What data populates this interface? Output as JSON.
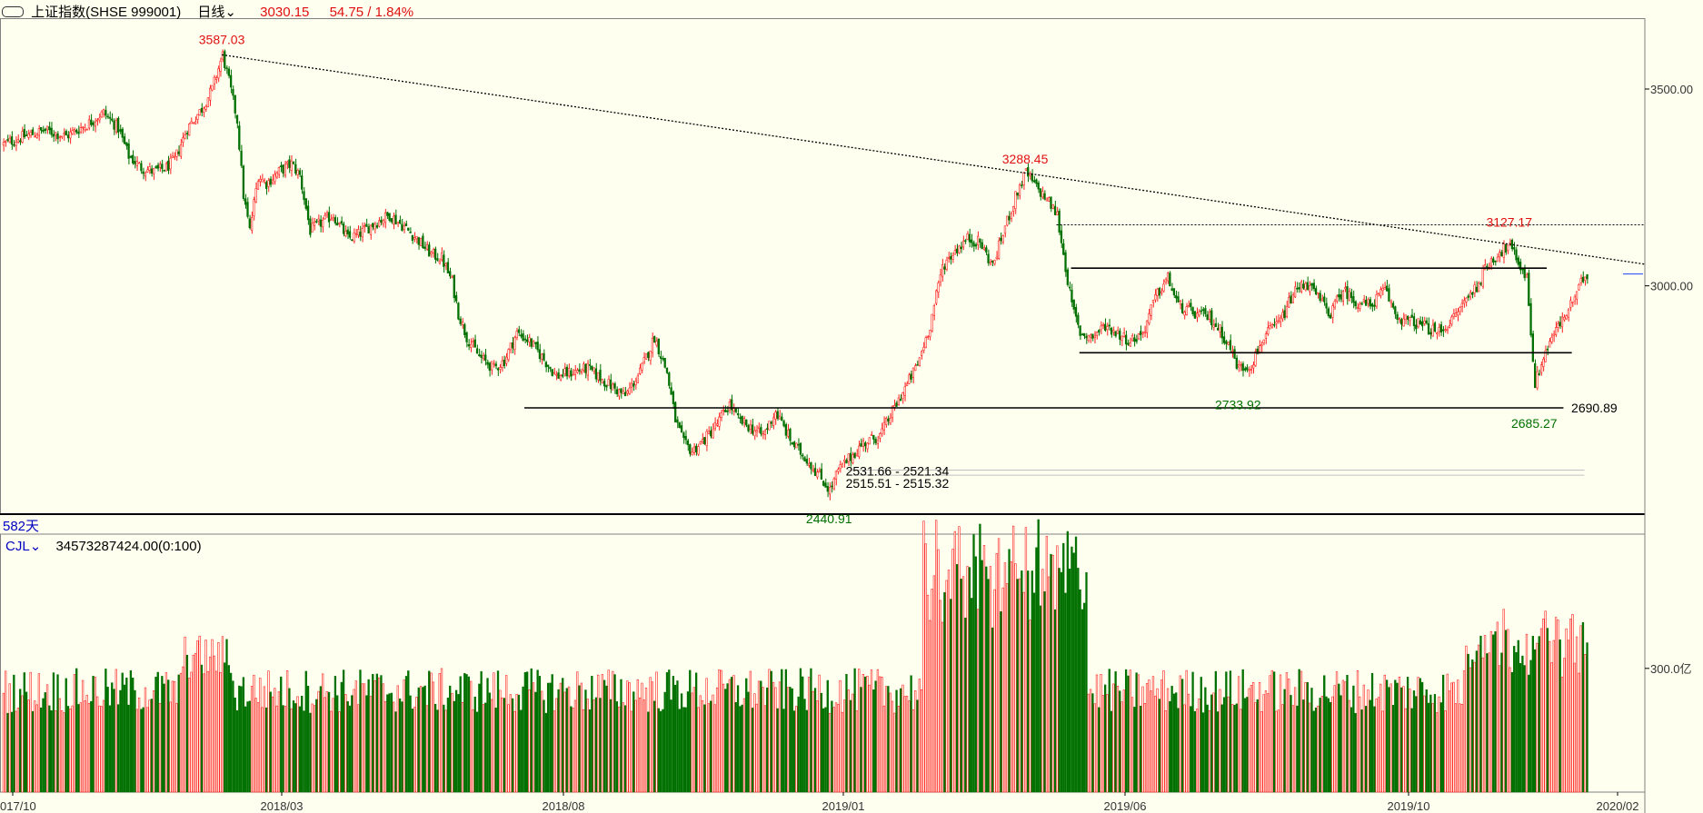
{
  "header": {
    "icon": "link-icon",
    "name": "上证指数(SHSE 999001)",
    "period": "日线",
    "price": "3030.15",
    "change": "54.75 / 1.84%"
  },
  "volume_header": {
    "name": "CJL",
    "value": "34573287424.00(0:100)"
  },
  "span_label": "582天",
  "colors": {
    "up": "#ff2020",
    "down": "#007000",
    "background": "#fffff0",
    "annotation_high": "#e01010",
    "annotation_low": "#007000"
  },
  "chart_data": [
    {
      "type": "candlestick",
      "x_ticks": [
        "017/10",
        "2018/03",
        "2018/08",
        "2019/01",
        "2019/06",
        "2019/10",
        "2020/02"
      ],
      "y_ticks": [
        "3500.00",
        "3000.00"
      ],
      "ylim": [
        2420,
        3680
      ],
      "annotations": {
        "high_2018": "3587.03",
        "high_2019": "3288.45",
        "high_2019_dec": "3127.17",
        "low_2019_aug": "2733.92",
        "low_2020_feb": "2685.27",
        "low_2019_jan": "2440.91",
        "support_level": "2690.89",
        "range_upper": "2531.66 - 2521.34",
        "range_lower": "2515.51 - 2515.32"
      },
      "anchors": [
        [
          0,
          3360
        ],
        [
          10,
          3380
        ],
        [
          20,
          3395
        ],
        [
          30,
          3380
        ],
        [
          40,
          3410
        ],
        [
          48,
          3440
        ],
        [
          55,
          3400
        ],
        [
          60,
          3330
        ],
        [
          66,
          3300
        ],
        [
          72,
          3290
        ],
        [
          78,
          3300
        ],
        [
          82,
          3320
        ],
        [
          88,
          3400
        ],
        [
          95,
          3450
        ],
        [
          100,
          3500
        ],
        [
          105,
          3587
        ],
        [
          108,
          3520
        ],
        [
          112,
          3420
        ],
        [
          115,
          3230
        ],
        [
          118,
          3140
        ],
        [
          122,
          3280
        ],
        [
          126,
          3260
        ],
        [
          132,
          3290
        ],
        [
          138,
          3310
        ],
        [
          142,
          3280
        ],
        [
          147,
          3140
        ],
        [
          152,
          3160
        ],
        [
          158,
          3180
        ],
        [
          165,
          3120
        ],
        [
          170,
          3130
        ],
        [
          178,
          3160
        ],
        [
          185,
          3180
        ],
        [
          192,
          3150
        ],
        [
          198,
          3120
        ],
        [
          205,
          3080
        ],
        [
          210,
          3070
        ],
        [
          215,
          3010
        ],
        [
          218,
          2930
        ],
        [
          222,
          2870
        ],
        [
          228,
          2820
        ],
        [
          235,
          2790
        ],
        [
          240,
          2810
        ],
        [
          246,
          2880
        ],
        [
          252,
          2860
        ],
        [
          258,
          2820
        ],
        [
          265,
          2770
        ],
        [
          272,
          2780
        ],
        [
          280,
          2790
        ],
        [
          290,
          2750
        ],
        [
          298,
          2720
        ],
        [
          305,
          2780
        ],
        [
          312,
          2870
        ],
        [
          318,
          2780
        ],
        [
          322,
          2660
        ],
        [
          326,
          2600
        ],
        [
          330,
          2580
        ],
        [
          336,
          2610
        ],
        [
          342,
          2650
        ],
        [
          348,
          2700
        ],
        [
          352,
          2660
        ],
        [
          358,
          2640
        ],
        [
          364,
          2620
        ],
        [
          370,
          2680
        ],
        [
          378,
          2600
        ],
        [
          385,
          2560
        ],
        [
          392,
          2510
        ],
        [
          396,
          2480
        ],
        [
          400,
          2530
        ],
        [
          405,
          2560
        ],
        [
          412,
          2600
        ],
        [
          420,
          2620
        ],
        [
          426,
          2680
        ],
        [
          432,
          2740
        ],
        [
          438,
          2800
        ],
        [
          444,
          2900
        ],
        [
          450,
          3050
        ],
        [
          456,
          3090
        ],
        [
          462,
          3120
        ],
        [
          468,
          3110
        ],
        [
          474,
          3050
        ],
        [
          480,
          3150
        ],
        [
          486,
          3240
        ],
        [
          490,
          3288
        ],
        [
          495,
          3250
        ],
        [
          500,
          3220
        ],
        [
          505,
          3180
        ],
        [
          508,
          3080
        ],
        [
          512,
          2950
        ],
        [
          516,
          2880
        ],
        [
          522,
          2870
        ],
        [
          528,
          2900
        ],
        [
          534,
          2880
        ],
        [
          540,
          2860
        ],
        [
          546,
          2880
        ],
        [
          552,
          2970
        ],
        [
          558,
          3020
        ],
        [
          563,
          2950
        ],
        [
          570,
          2930
        ],
        [
          578,
          2920
        ],
        [
          584,
          2880
        ],
        [
          588,
          2840
        ],
        [
          592,
          2790
        ],
        [
          598,
          2800
        ],
        [
          604,
          2870
        ],
        [
          612,
          2910
        ],
        [
          618,
          2980
        ],
        [
          624,
          3010
        ],
        [
          630,
          2970
        ],
        [
          636,
          2930
        ],
        [
          642,
          2990
        ],
        [
          648,
          2960
        ],
        [
          655,
          2950
        ],
        [
          662,
          2990
        ],
        [
          668,
          2920
        ],
        [
          674,
          2910
        ],
        [
          680,
          2900
        ],
        [
          687,
          2880
        ],
        [
          694,
          2910
        ],
        [
          700,
          2960
        ],
        [
          706,
          3000
        ],
        [
          712,
          3060
        ],
        [
          718,
          3090
        ],
        [
          722,
          3100
        ],
        [
          726,
          3060
        ],
        [
          730,
          3020
        ],
        [
          734,
          2750
        ],
        [
          738,
          2820
        ],
        [
          742,
          2870
        ],
        [
          748,
          2920
        ],
        [
          754,
          2980
        ],
        [
          758,
          3030
        ]
      ],
      "volume": {
        "unit_label": "300.0亿"
      }
    }
  ]
}
